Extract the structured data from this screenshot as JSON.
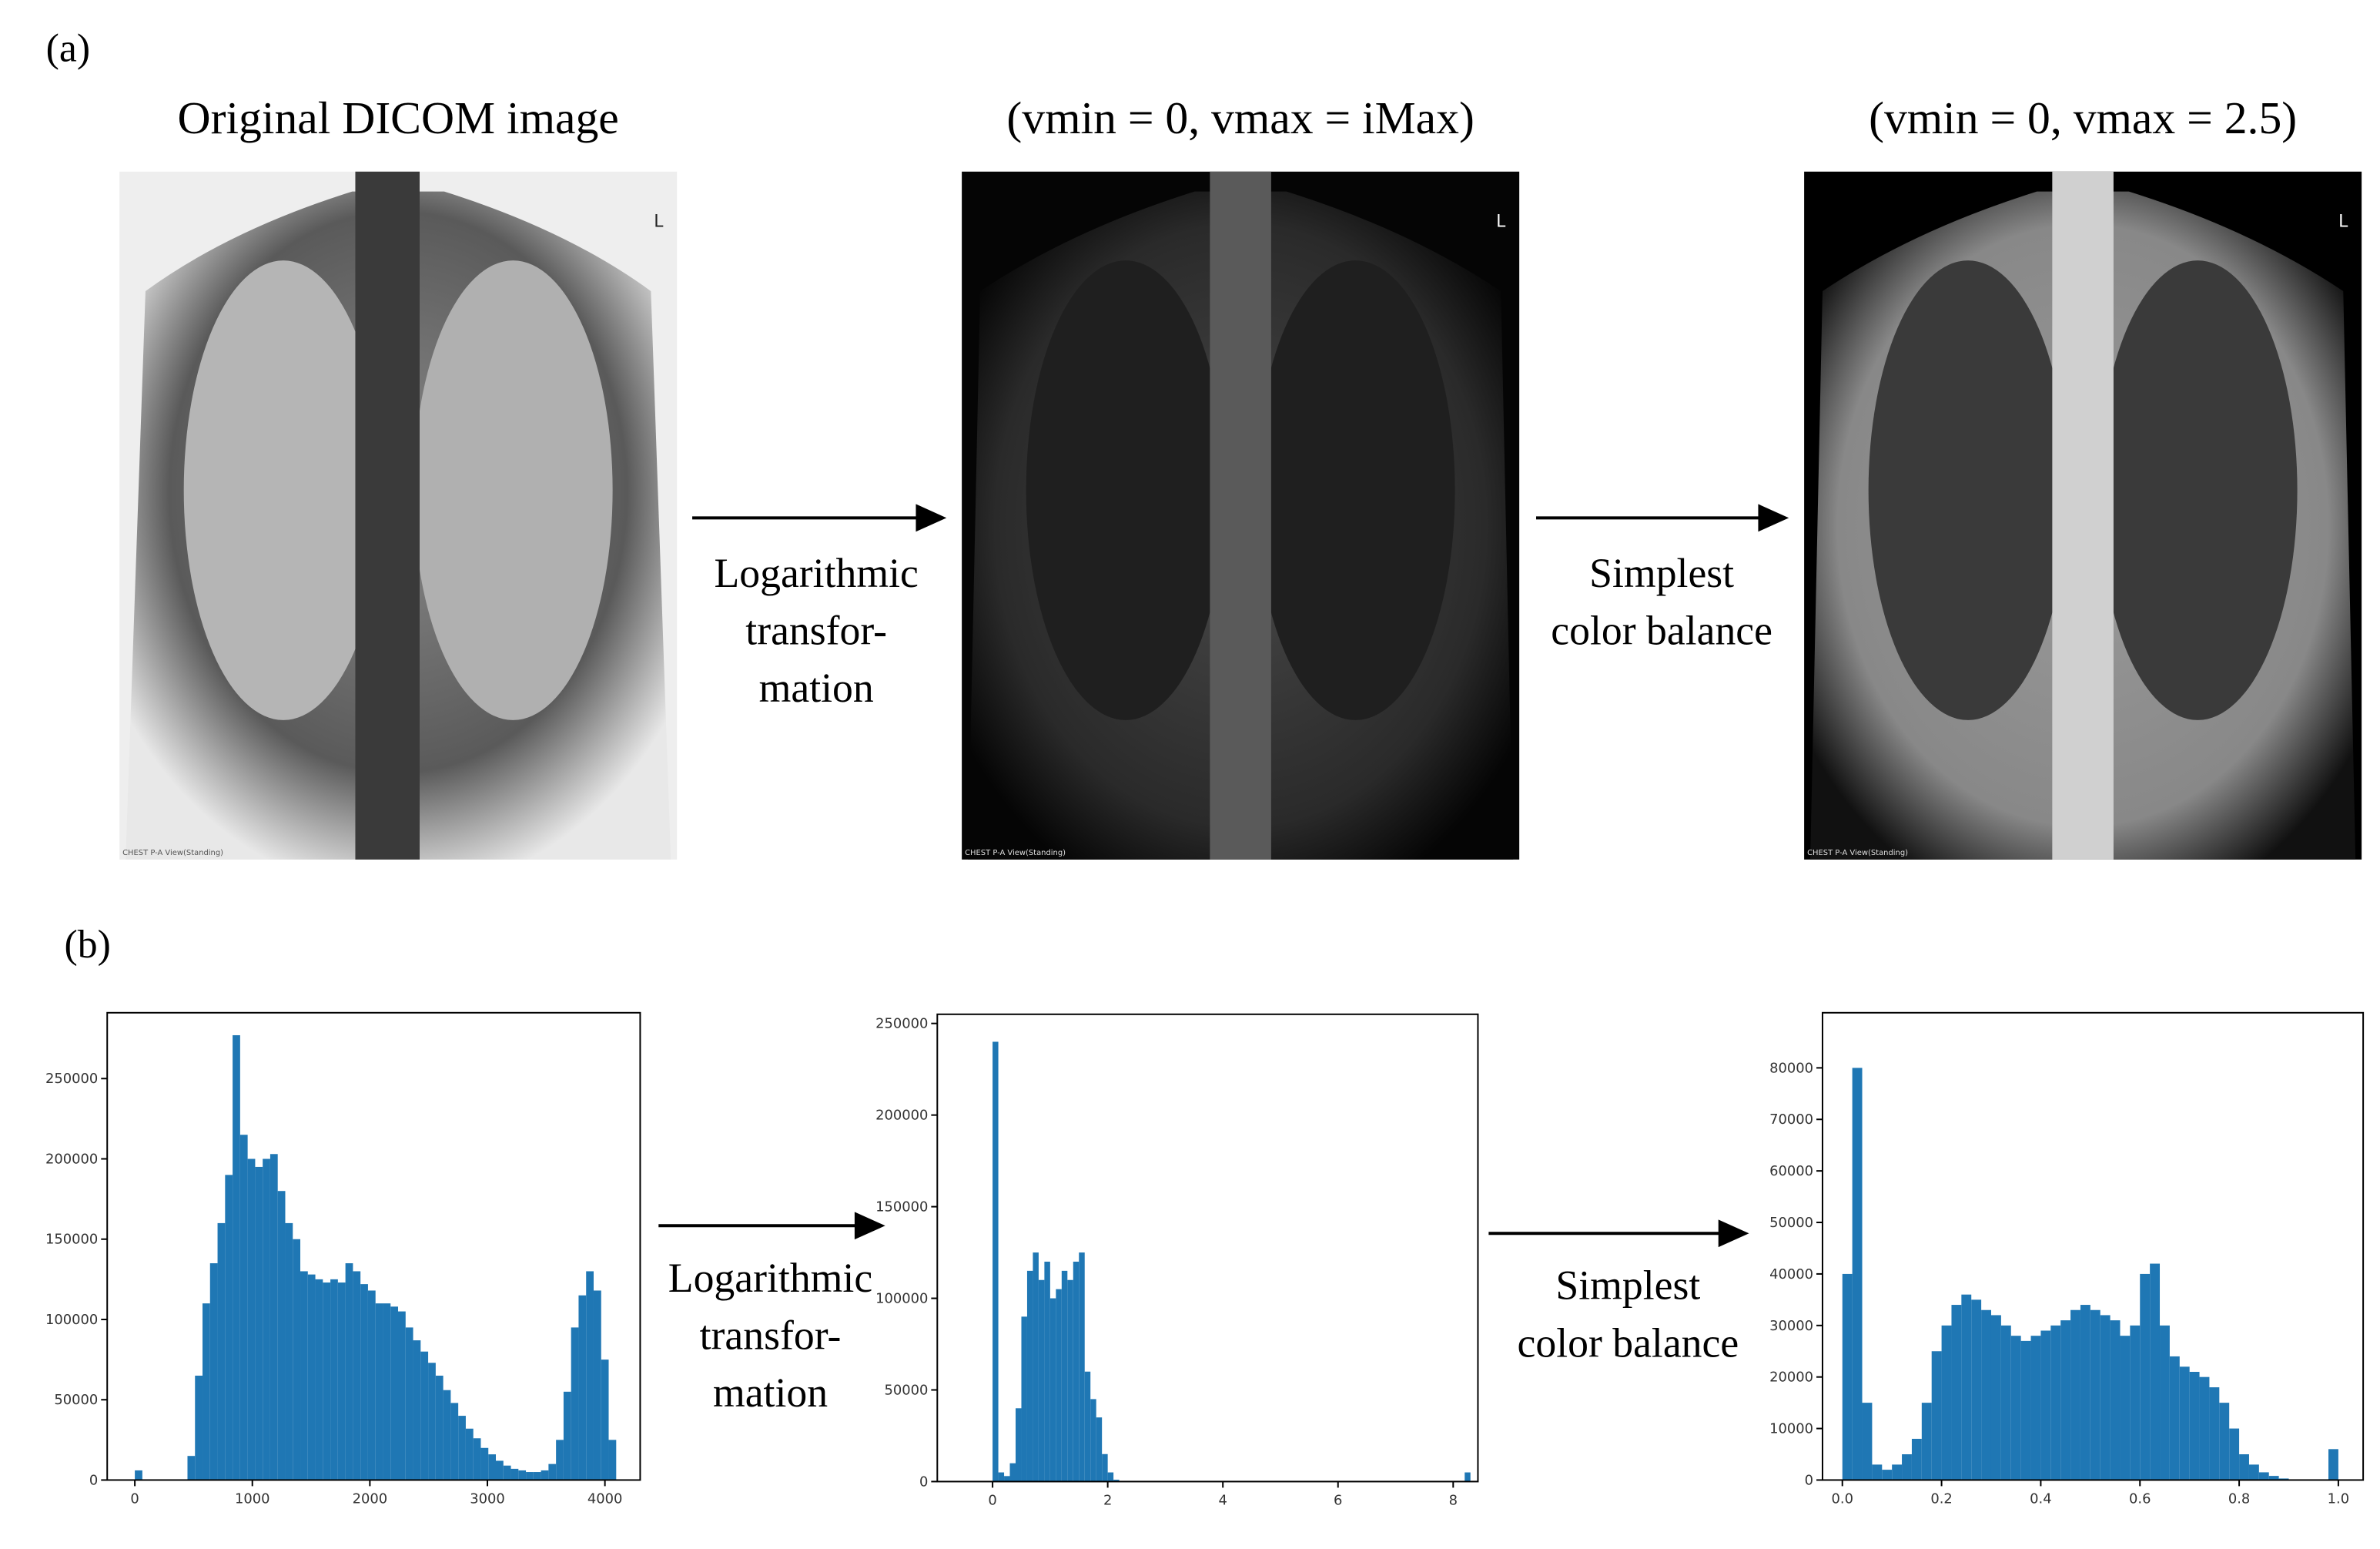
{
  "labels": {
    "a": "(a)",
    "b": "(b)"
  },
  "panels": [
    {
      "title": "Original DICOM image",
      "marker": "L",
      "caption": "CHEST P-A View(Standing)"
    },
    {
      "title": "(vmin = 0, vmax = iMax)",
      "marker": "L",
      "caption": "CHEST P-A View(Standing)"
    },
    {
      "title": "(vmin = 0, vmax = 2.5)",
      "marker": "L",
      "caption": "CHEST P-A View(Standing)"
    }
  ],
  "arrows": [
    {
      "lines": [
        "Logarithmic",
        "transfor-",
        "mation"
      ]
    },
    {
      "lines": [
        "Simplest",
        "color balance"
      ]
    },
    {
      "lines": [
        "Logarithmic",
        "transfor-",
        "mation"
      ]
    },
    {
      "lines": [
        "Simplest",
        "color balance"
      ]
    }
  ],
  "chart_data": [
    {
      "type": "histogram",
      "color": "#1f77b4",
      "bins": [
        0,
        64,
        128,
        192,
        256,
        320,
        384,
        448,
        512,
        576,
        640,
        704,
        768,
        832,
        896,
        960,
        1024,
        1088,
        1152,
        1216,
        1280,
        1344,
        1408,
        1472,
        1536,
        1600,
        1664,
        1728,
        1792,
        1856,
        1920,
        1984,
        2048,
        2112,
        2176,
        2240,
        2304,
        2368,
        2432,
        2496,
        2560,
        2624,
        2688,
        2752,
        2816,
        2880,
        2944,
        3008,
        3072,
        3136,
        3200,
        3264,
        3328,
        3392,
        3456,
        3520,
        3584,
        3648,
        3712,
        3776,
        3840,
        3904,
        3968,
        4032,
        4096
      ],
      "counts": [
        6000,
        0,
        0,
        0,
        0,
        0,
        0,
        15000,
        65000,
        110000,
        135000,
        160000,
        190000,
        277000,
        215000,
        200000,
        195000,
        200000,
        203000,
        180000,
        160000,
        150000,
        130000,
        128000,
        125000,
        123000,
        125000,
        123000,
        135000,
        130000,
        122000,
        118000,
        110000,
        110000,
        108000,
        105000,
        95000,
        87000,
        80000,
        73000,
        65000,
        56000,
        48000,
        40000,
        32000,
        26000,
        20000,
        16000,
        12000,
        9000,
        7000,
        6000,
        5000,
        5000,
        6000,
        10000,
        25000,
        55000,
        95000,
        115000,
        130000,
        118000,
        75000,
        25000
      ],
      "xlim": [
        -235,
        4300
      ],
      "xticks": [
        0,
        1000,
        2000,
        3000,
        4000
      ],
      "ylim": [
        0,
        291000
      ],
      "yticks": [
        0,
        50000,
        100000,
        150000,
        200000,
        250000
      ]
    },
    {
      "type": "histogram",
      "color": "#1f77b4",
      "bins": [
        0,
        0.1,
        0.2,
        0.3,
        0.4,
        0.5,
        0.6,
        0.7,
        0.8,
        0.9,
        1.0,
        1.1,
        1.2,
        1.3,
        1.4,
        1.5,
        1.6,
        1.7,
        1.8,
        1.9,
        2.0,
        2.1,
        2.2,
        2.3,
        2.4,
        2.5,
        2.6,
        2.7,
        2.8,
        2.9,
        3.0,
        3.1,
        3.2,
        3.3,
        3.4,
        3.5,
        3.6,
        3.7,
        3.8,
        3.9,
        4.0,
        4.1,
        4.2,
        4.3,
        4.4,
        4.5,
        4.6,
        4.7,
        4.8,
        4.9,
        5.0,
        5.1,
        5.2,
        5.3,
        5.4,
        5.5,
        5.6,
        5.7,
        5.8,
        5.9,
        6.0,
        6.1,
        6.2,
        6.3,
        6.4,
        6.5,
        6.6,
        6.7,
        6.8,
        6.9,
        7.0,
        7.1,
        7.2,
        7.3,
        7.4,
        7.5,
        7.6,
        7.7,
        7.8,
        7.9,
        8.0,
        8.1,
        8.2,
        8.3
      ],
      "counts": [
        240000,
        5000,
        3000,
        10000,
        40000,
        90000,
        115000,
        125000,
        110000,
        120000,
        100000,
        105000,
        115000,
        110000,
        120000,
        125000,
        60000,
        45000,
        35000,
        15000,
        5000,
        1000,
        0,
        0,
        0,
        0,
        0,
        0,
        0,
        0,
        0,
        0,
        0,
        0,
        0,
        0,
        0,
        0,
        0,
        0,
        0,
        0,
        0,
        0,
        0,
        0,
        0,
        0,
        0,
        0,
        0,
        0,
        0,
        0,
        0,
        0,
        0,
        0,
        0,
        0,
        0,
        0,
        0,
        0,
        0,
        0,
        0,
        0,
        0,
        0,
        0,
        0,
        0,
        0,
        0,
        0,
        0,
        0,
        0,
        0,
        0,
        0,
        5000
      ],
      "xlim": [
        -0.96,
        8.43
      ],
      "xticks": [
        0,
        2,
        4,
        6,
        8
      ],
      "ylim": [
        0,
        255000
      ],
      "yticks": [
        0,
        50000,
        100000,
        150000,
        200000,
        250000
      ]
    },
    {
      "type": "histogram",
      "color": "#1f77b4",
      "bins": [
        0,
        0.02,
        0.04,
        0.06,
        0.08,
        0.1,
        0.12,
        0.14,
        0.16,
        0.18,
        0.2,
        0.22,
        0.24,
        0.26,
        0.28,
        0.3,
        0.32,
        0.34,
        0.36,
        0.38,
        0.4,
        0.42,
        0.44,
        0.46,
        0.48,
        0.5,
        0.52,
        0.54,
        0.56,
        0.58,
        0.6,
        0.62,
        0.64,
        0.66,
        0.68,
        0.7,
        0.72,
        0.74,
        0.76,
        0.78,
        0.8,
        0.82,
        0.84,
        0.86,
        0.88,
        0.9,
        0.92,
        0.94,
        0.96,
        0.98,
        1.0
      ],
      "counts": [
        40000,
        80000,
        15000,
        3000,
        2000,
        3000,
        5000,
        8000,
        15000,
        25000,
        30000,
        34000,
        36000,
        35000,
        33000,
        32000,
        30000,
        28000,
        27000,
        28000,
        29000,
        30000,
        31000,
        33000,
        34000,
        33000,
        32000,
        31000,
        28000,
        30000,
        40000,
        42000,
        30000,
        24000,
        22000,
        21000,
        20000,
        18000,
        15000,
        10000,
        5000,
        3000,
        1500,
        800,
        300,
        0,
        0,
        0,
        0,
        6000
      ],
      "xlim": [
        -0.04,
        1.05
      ],
      "xticks": [
        {
          "value": 0,
          "label": "0.0"
        },
        {
          "value": 0.2,
          "label": "0.2"
        },
        {
          "value": 0.4,
          "label": "0.4"
        },
        {
          "value": 0.6,
          "label": "0.6"
        },
        {
          "value": 0.8,
          "label": "0.8"
        },
        {
          "value": 1,
          "label": "1.0"
        }
      ],
      "ylim": [
        0,
        90700
      ],
      "yticks": [
        0,
        10000,
        20000,
        30000,
        40000,
        50000,
        60000,
        70000,
        80000
      ]
    }
  ]
}
